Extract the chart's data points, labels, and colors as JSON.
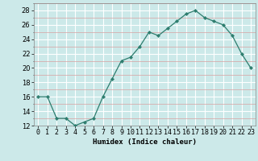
{
  "x": [
    0,
    1,
    2,
    3,
    4,
    5,
    6,
    7,
    8,
    9,
    10,
    11,
    12,
    13,
    14,
    15,
    16,
    17,
    18,
    19,
    20,
    21,
    22,
    23
  ],
  "y": [
    16,
    16,
    13,
    13,
    12,
    12.5,
    13,
    16,
    18.5,
    21,
    21.5,
    23,
    25,
    24.5,
    25.5,
    26.5,
    27.5,
    28,
    27,
    26.5,
    26,
    24.5,
    22,
    20
  ],
  "line_color": "#2d7d6e",
  "marker": "D",
  "marker_size": 2.2,
  "bg_color": "#cce9e9",
  "grid_color": "#ffffff",
  "grid_minor_color": "#e8f5f5",
  "xlabel": "Humidex (Indice chaleur)",
  "ylim": [
    12,
    29
  ],
  "xlim": [
    -0.5,
    23.5
  ],
  "yticks": [
    12,
    14,
    16,
    18,
    20,
    22,
    24,
    26,
    28
  ],
  "xtick_labels": [
    "0",
    "1",
    "2",
    "3",
    "4",
    "5",
    "6",
    "7",
    "8",
    "9",
    "10",
    "11",
    "12",
    "13",
    "14",
    "15",
    "16",
    "17",
    "18",
    "19",
    "20",
    "21",
    "22",
    "23"
  ],
  "label_fontsize": 6.5,
  "tick_fontsize": 6.0
}
